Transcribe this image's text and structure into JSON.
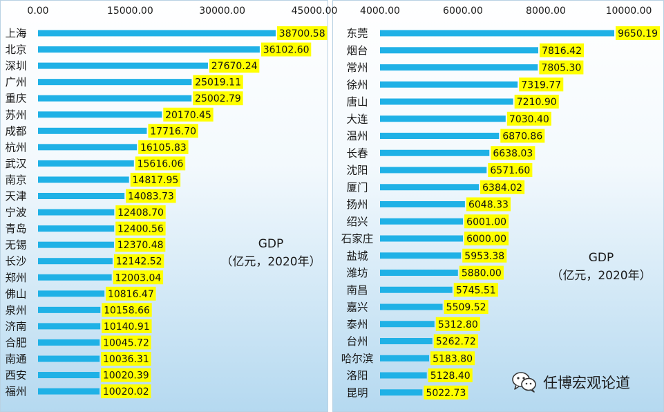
{
  "chart_data": [
    {
      "type": "bar",
      "orientation": "horizontal",
      "categories": [
        "上海",
        "北京",
        "深圳",
        "广州",
        "重庆",
        "苏州",
        "成都",
        "杭州",
        "武汉",
        "南京",
        "天津",
        "宁波",
        "青岛",
        "无锡",
        "长沙",
        "郑州",
        "佛山",
        "泉州",
        "济南",
        "合肥",
        "南通",
        "西安",
        "福州"
      ],
      "values": [
        38700.58,
        36102.6,
        27670.24,
        25019.11,
        25002.79,
        20170.45,
        17716.7,
        16105.83,
        15616.06,
        14817.95,
        14083.73,
        12408.7,
        12400.56,
        12370.48,
        12142.52,
        12003.04,
        10816.47,
        10158.66,
        10140.91,
        10045.72,
        10036.31,
        10020.39,
        10020.02
      ],
      "value_labels": [
        "38700.58",
        "36102.60",
        "27670.24",
        "25019.11",
        "25002.79",
        "20170.45",
        "17716.70",
        "16105.83",
        "15616.06",
        "14817.95",
        "14083.73",
        "12408.70",
        "12400.56",
        "12370.48",
        "12142.52",
        "12003.04",
        "10816.47",
        "10158.66",
        "10140.91",
        "10045.72",
        "10036.31",
        "10020.39",
        "10020.02"
      ],
      "xlim": [
        0,
        45000
      ],
      "x_ticks": [
        0,
        15000,
        30000,
        45000
      ],
      "x_tick_labels": [
        "0.00",
        "15000.00",
        "30000.00",
        "45000.00"
      ],
      "axis_position": "top",
      "grid": false,
      "bar_color": "#1fb1e6",
      "label_bg_color": "#ffff00",
      "annotation": [
        "GDP",
        "（亿元，2020年）"
      ]
    },
    {
      "type": "bar",
      "orientation": "horizontal",
      "categories": [
        "东莞",
        "烟台",
        "常州",
        "徐州",
        "唐山",
        "大连",
        "温州",
        "长春",
        "沈阳",
        "厦门",
        "扬州",
        "绍兴",
        "石家庄",
        "盐城",
        "潍坊",
        "南昌",
        "嘉兴",
        "泰州",
        "台州",
        "哈尔滨",
        "洛阳",
        "昆明"
      ],
      "values": [
        9650.19,
        7816.42,
        7805.3,
        7319.77,
        7210.9,
        7030.4,
        6870.86,
        6638.03,
        6571.6,
        6384.02,
        6048.33,
        6001.0,
        6000.0,
        5953.38,
        5880.0,
        5745.51,
        5509.52,
        5312.8,
        5262.72,
        5183.8,
        5128.4,
        5022.73
      ],
      "value_labels": [
        "9650.19",
        "7816.42",
        "7805.30",
        "7319.77",
        "7210.90",
        "7030.40",
        "6870.86",
        "6638.03",
        "6571.60",
        "6384.02",
        "6048.33",
        "6001.00",
        "6000.00",
        "5953.38",
        "5880.00",
        "5745.51",
        "5509.52",
        "5312.80",
        "5262.72",
        "5183.80",
        "5128.40",
        "5022.73"
      ],
      "xlim": [
        4000,
        10000
      ],
      "x_ticks": [
        4000,
        6000,
        8000,
        10000
      ],
      "x_tick_labels": [
        "4000.00",
        "6000.00",
        "8000.00",
        "10000.00"
      ],
      "axis_position": "top",
      "grid": false,
      "bar_color": "#1fb1e6",
      "label_bg_color": "#ffff00",
      "annotation": [
        "GDP",
        "（亿元，2020年）"
      ]
    }
  ],
  "watermark": {
    "icon": "wechat-icon",
    "text": "任博宏观论道"
  }
}
